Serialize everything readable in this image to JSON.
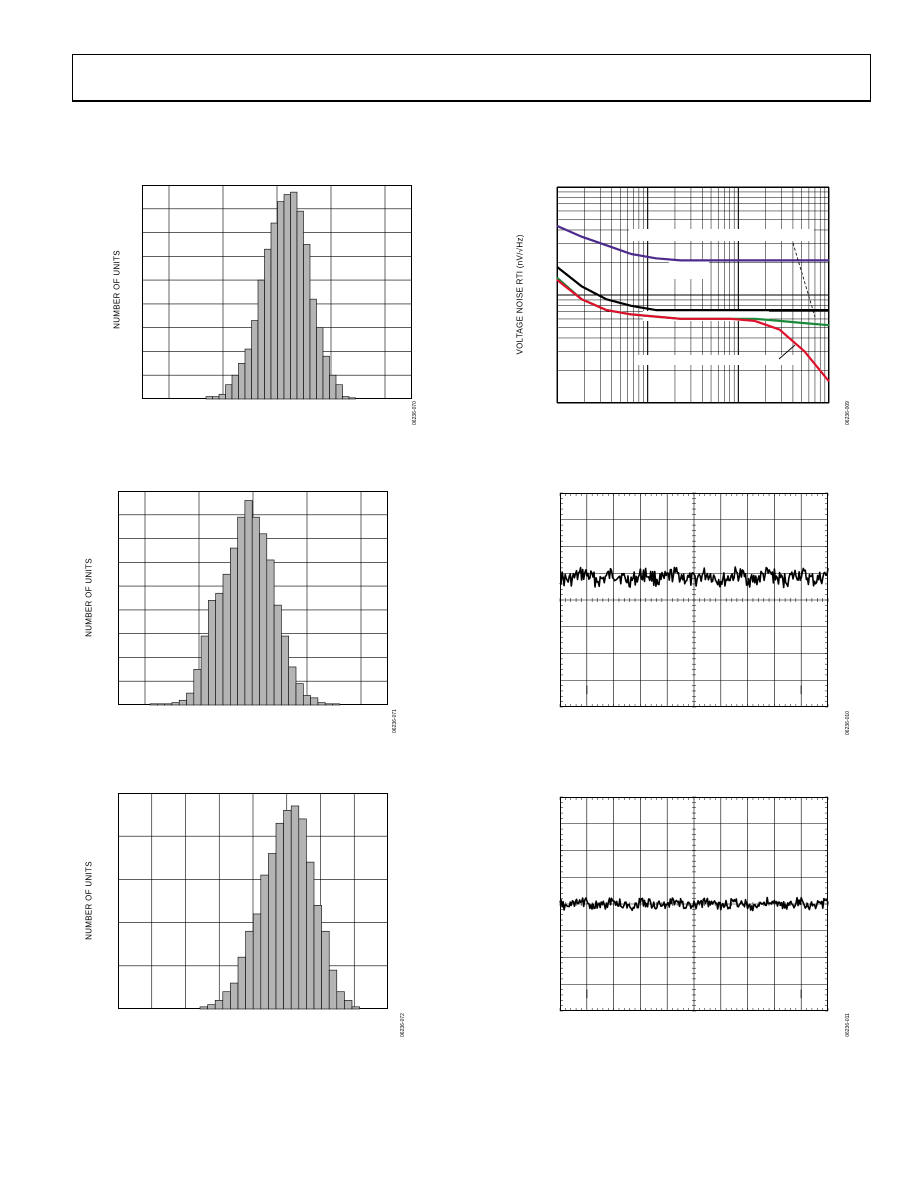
{
  "header": {},
  "charts": {
    "h1": {
      "ylabel": "NUMBER OF UNITS",
      "code": "06236-070"
    },
    "h2": {
      "ylabel": "NUMBER OF UNITS",
      "code": "06236-071"
    },
    "h3": {
      "ylabel": "NUMBER OF UNITS",
      "code": "06236-072"
    },
    "noise": {
      "ylabel": "VOLTAGE NOISE RTI (nV/√Hz)",
      "code": "06236-009"
    },
    "scope1": {
      "code": "06236-010"
    },
    "scope2": {
      "code": "06236-011"
    }
  },
  "chart_data": [
    {
      "type": "bar",
      "id": "h1",
      "title": "",
      "xlabel": "",
      "ylabel": "NUMBER OF UNITS",
      "grid": true,
      "ylim": [
        0,
        9
      ],
      "values": [
        0.1,
        0.1,
        0.2,
        0.6,
        1.0,
        1.5,
        2.1,
        3.3,
        5.0,
        6.3,
        7.4,
        8.3,
        8.6,
        8.7,
        7.9,
        6.5,
        4.2,
        3.0,
        1.8,
        1.0,
        0.6,
        0.1,
        0.05
      ]
    },
    {
      "type": "bar",
      "id": "h2",
      "title": "",
      "xlabel": "",
      "ylabel": "NUMBER OF UNITS",
      "grid": true,
      "ylim": [
        0,
        9
      ],
      "values": [
        0.05,
        0.05,
        0.05,
        0.1,
        0.2,
        0.5,
        1.5,
        2.9,
        4.4,
        4.7,
        5.5,
        6.6,
        7.9,
        8.6,
        7.9,
        7.2,
        6.1,
        4.2,
        2.9,
        1.6,
        0.9,
        0.4,
        0.3,
        0.1,
        0.05,
        0.05
      ]
    },
    {
      "type": "bar",
      "id": "h3",
      "title": "",
      "xlabel": "",
      "ylabel": "NUMBER OF UNITS",
      "grid": true,
      "ylim": [
        0,
        5
      ],
      "values": [
        0.05,
        0.1,
        0.2,
        0.4,
        0.6,
        1.2,
        1.8,
        2.2,
        3.1,
        3.6,
        4.3,
        4.6,
        4.7,
        4.4,
        3.4,
        2.4,
        1.8,
        0.9,
        0.4,
        0.2,
        0.05
      ]
    },
    {
      "type": "line",
      "id": "noise",
      "title": "",
      "xlabel": "",
      "ylabel": "VOLTAGE NOISE RTI (nV/√Hz)",
      "grid": true,
      "xscale": "log",
      "yscale": "log",
      "legend": "none",
      "series": [
        {
          "color": "#4b2a8c",
          "values": [
            0.82,
            0.77,
            0.73,
            0.69,
            0.67,
            0.66,
            0.66,
            0.66,
            0.66,
            0.66,
            0.66,
            0.66
          ]
        },
        {
          "color": "#000000",
          "values": [
            0.63,
            0.54,
            0.48,
            0.45,
            0.43,
            0.43,
            0.43,
            0.43,
            0.43,
            0.43,
            0.43,
            0.43
          ]
        },
        {
          "color": "#1a8a3a",
          "values": [
            0.58,
            0.48,
            0.43,
            0.41,
            0.4,
            0.39,
            0.39,
            0.39,
            0.39,
            0.38,
            0.37,
            0.36
          ]
        },
        {
          "color": "#e0102c",
          "values": [
            0.57,
            0.48,
            0.43,
            0.41,
            0.4,
            0.39,
            0.39,
            0.39,
            0.38,
            0.34,
            0.24,
            0.1
          ]
        }
      ]
    },
    {
      "type": "line",
      "id": "scope1",
      "title": "",
      "xlabel": "",
      "ylabel": "",
      "grid": true,
      "ylim": [
        0,
        8
      ],
      "series": [
        {
          "color": "#000000",
          "level": 4.85,
          "amplitude": 0.28
        }
      ]
    },
    {
      "type": "line",
      "id": "scope2",
      "title": "",
      "xlabel": "",
      "ylabel": "",
      "grid": true,
      "ylim": [
        0,
        8
      ],
      "series": [
        {
          "color": "#000000",
          "level": 4.0,
          "amplitude": 0.18
        }
      ]
    }
  ]
}
